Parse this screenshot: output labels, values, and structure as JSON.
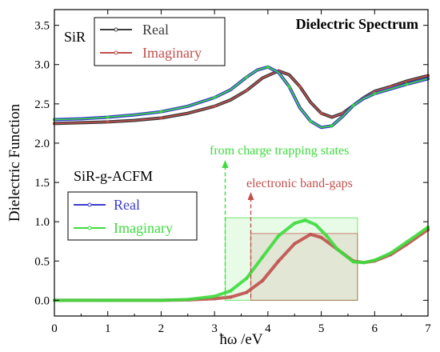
{
  "chart_data": {
    "type": "line",
    "title": "Dielectric Spectrum",
    "xlabel": "ħω /eV",
    "ylabel": "Dielectric Function",
    "xlim": [
      0,
      7
    ],
    "ylim": [
      -0.2,
      3.7
    ],
    "xticks": [
      "0",
      "1",
      "2",
      "3",
      "4",
      "5",
      "6",
      "7"
    ],
    "yticks": [
      "0.0",
      "0.5",
      "1.0",
      "1.5",
      "2.0",
      "2.5",
      "3.0",
      "3.5"
    ],
    "grid": false,
    "groups": [
      {
        "label": "SiR",
        "legend_position": "top-left",
        "series": [
          {
            "name": "Real",
            "color": "#3b3b3b",
            "x": [
              0,
              0.5,
              1,
              1.5,
              2,
              2.5,
              3,
              3.3,
              3.6,
              3.9,
              4.2,
              4.4,
              4.6,
              4.8,
              5.0,
              5.2,
              5.4,
              5.6,
              5.8,
              6.0,
              6.3,
              6.6,
              7.0
            ],
            "y": [
              2.25,
              2.26,
              2.27,
              2.29,
              2.32,
              2.38,
              2.47,
              2.55,
              2.67,
              2.83,
              2.92,
              2.87,
              2.72,
              2.52,
              2.38,
              2.33,
              2.38,
              2.48,
              2.58,
              2.66,
              2.72,
              2.79,
              2.86
            ]
          },
          {
            "name": "Imaginary",
            "color": "#c0504d",
            "x": [
              0,
              0.5,
              1,
              1.5,
              2,
              2.5,
              3,
              3.3,
              3.6,
              3.9,
              4.2,
              4.4,
              4.6,
              4.8,
              5.0,
              5.2,
              5.4,
              5.6,
              5.8,
              6.0,
              6.3,
              6.6,
              7.0
            ],
            "y": [
              2.25,
              2.26,
              2.27,
              2.29,
              2.32,
              2.38,
              2.47,
              2.55,
              2.67,
              2.83,
              2.92,
              2.87,
              2.72,
              2.52,
              2.38,
              2.33,
              2.38,
              2.48,
              2.58,
              2.66,
              2.72,
              2.79,
              2.86
            ]
          }
        ]
      },
      {
        "label": "SiR-g-ACFM",
        "legend_position": "bottom-left",
        "series": [
          {
            "name": "Real",
            "color": "#3b3bd0",
            "x": [
              0,
              0.5,
              1,
              1.5,
              2,
              2.5,
              3,
              3.3,
              3.6,
              3.8,
              4.0,
              4.2,
              4.4,
              4.6,
              4.8,
              5.0,
              5.2,
              5.4,
              5.6,
              5.8,
              6.0,
              6.3,
              6.6,
              7.0
            ],
            "y": [
              2.3,
              2.31,
              2.33,
              2.36,
              2.4,
              2.47,
              2.58,
              2.68,
              2.84,
              2.93,
              2.97,
              2.9,
              2.72,
              2.45,
              2.28,
              2.2,
              2.22,
              2.34,
              2.48,
              2.57,
              2.63,
              2.69,
              2.75,
              2.82
            ]
          },
          {
            "name": "Imaginary",
            "color": "#3ddc3d",
            "x": [
              0,
              0.5,
              1,
              1.5,
              2,
              2.5,
              3,
              3.3,
              3.6,
              3.8,
              4.0,
              4.2,
              4.4,
              4.6,
              4.8,
              5.0,
              5.2,
              5.4,
              5.6,
              5.8,
              6.0,
              6.3,
              6.6,
              7.0
            ],
            "y": [
              2.3,
              2.31,
              2.33,
              2.36,
              2.4,
              2.47,
              2.58,
              2.68,
              2.84,
              2.93,
              2.97,
              2.9,
              2.72,
              2.45,
              2.28,
              2.2,
              2.22,
              2.34,
              2.48,
              2.57,
              2.63,
              2.69,
              2.75,
              2.82
            ]
          }
        ]
      }
    ],
    "lower_curves": [
      {
        "color": "#c0504d",
        "x": [
          0,
          1,
          2,
          2.5,
          3,
          3.3,
          3.6,
          3.9,
          4.2,
          4.5,
          4.8,
          5.0,
          5.3,
          5.6,
          5.8,
          6.0,
          6.3,
          6.6,
          7.0
        ],
        "y": [
          0,
          0,
          0,
          0.005,
          0.02,
          0.04,
          0.1,
          0.25,
          0.5,
          0.72,
          0.84,
          0.8,
          0.65,
          0.5,
          0.48,
          0.5,
          0.58,
          0.71,
          0.9
        ]
      },
      {
        "color": "#3ddc3d",
        "x": [
          0,
          1,
          2,
          2.5,
          3,
          3.3,
          3.6,
          3.9,
          4.2,
          4.5,
          4.7,
          4.9,
          5.1,
          5.3,
          5.6,
          5.8,
          6.0,
          6.3,
          6.6,
          7.0
        ],
        "y": [
          0,
          0,
          0,
          0.01,
          0.05,
          0.12,
          0.28,
          0.55,
          0.82,
          0.98,
          1.02,
          0.96,
          0.82,
          0.65,
          0.49,
          0.48,
          0.51,
          0.6,
          0.74,
          0.93
        ]
      }
    ],
    "annotations": [
      {
        "text": "from charge trapping states",
        "color": "#3ddc3d",
        "arrow_x": 3.2
      },
      {
        "text": "electronic band-gaps",
        "color": "#c0504d",
        "arrow_x": 3.68
      }
    ],
    "shaded_regions": [
      {
        "x": [
          3.2,
          5.68
        ],
        "y": [
          0,
          1.05
        ],
        "color": "#3ddc3d"
      },
      {
        "x": [
          3.68,
          5.68
        ],
        "y": [
          0,
          0.85
        ],
        "color": "#c0504d"
      }
    ]
  }
}
